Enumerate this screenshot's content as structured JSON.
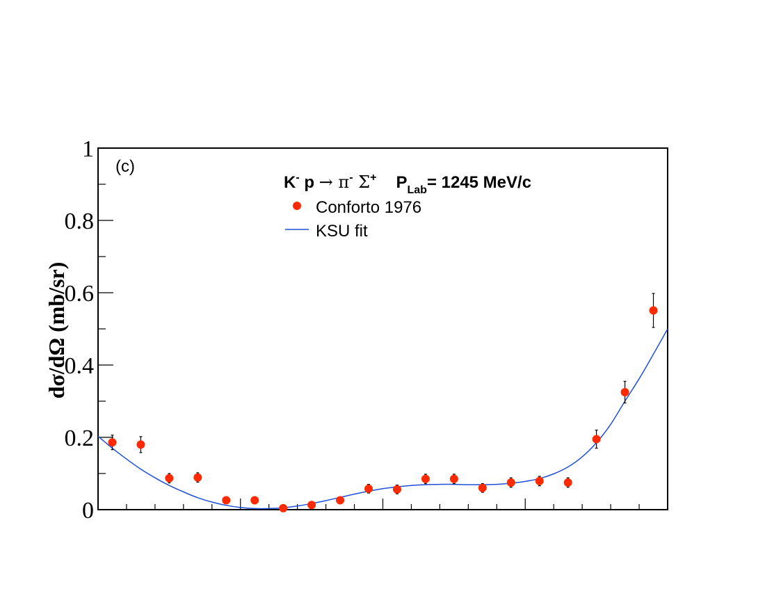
{
  "panel_label": "(c)",
  "colors": {
    "points": "#ff2a00",
    "fit": "#1e4fd8",
    "errorbar": "#000000",
    "axis": "#000000"
  },
  "chart_data": {
    "type": "scatter",
    "title": {
      "k": "K",
      "k_sup": "-",
      "p": " p ",
      "arrow": "→",
      "pi": " π",
      "pi_sup": "-",
      "sigma": " Σ",
      "sigma_sup": "+",
      "plab": "P",
      "plab_sub": "Lab",
      "plab_value": "= 1245 MeV/c"
    },
    "ylabel": "dσ/dΩ (mb/sr)",
    "xlabel": "",
    "xlim": [
      -1,
      1
    ],
    "ylim": [
      0,
      1
    ],
    "y_tick_labels": [
      "0",
      "0.2",
      "0.4",
      "0.6",
      "0.8",
      "1"
    ],
    "y_major_ticks": [
      0,
      0.2,
      0.4,
      0.6,
      0.8,
      1.0
    ],
    "y_minor_ticks": [
      0.1,
      0.3,
      0.5,
      0.7,
      0.9
    ],
    "x_major_ticks": [
      -1,
      -0.5,
      0,
      0.5,
      1
    ],
    "x_minor_ticks": [
      -0.9,
      -0.8,
      -0.7,
      -0.6,
      -0.4,
      -0.3,
      -0.2,
      -0.1,
      0.1,
      0.2,
      0.3,
      0.4,
      0.6,
      0.7,
      0.8,
      0.9
    ],
    "grid": false,
    "legend_position": "top-center",
    "series": [
      {
        "name": "Conforto 1976",
        "kind": "points",
        "x": [
          -0.95,
          -0.85,
          -0.75,
          -0.65,
          -0.55,
          -0.45,
          -0.35,
          -0.25,
          -0.15,
          -0.05,
          0.05,
          0.15,
          0.25,
          0.35,
          0.45,
          0.55,
          0.65,
          0.75,
          0.85,
          0.95
        ],
        "y": [
          0.186,
          0.18,
          0.087,
          0.089,
          0.026,
          0.026,
          0.004,
          0.013,
          0.026,
          0.058,
          0.056,
          0.085,
          0.085,
          0.06,
          0.075,
          0.079,
          0.075,
          0.195,
          0.325,
          0.551
        ],
        "err": [
          0.02,
          0.022,
          0.013,
          0.013,
          0.005,
          0.005,
          0.003,
          0.004,
          0.005,
          0.012,
          0.012,
          0.013,
          0.013,
          0.012,
          0.013,
          0.013,
          0.013,
          0.025,
          0.03,
          0.047
        ]
      },
      {
        "name": "KSU fit",
        "kind": "line",
        "x": [
          -1.0,
          -0.95,
          -0.9,
          -0.85,
          -0.8,
          -0.75,
          -0.7,
          -0.65,
          -0.6,
          -0.55,
          -0.5,
          -0.45,
          -0.4,
          -0.35,
          -0.3,
          -0.25,
          -0.2,
          -0.15,
          -0.1,
          -0.05,
          0.0,
          0.05,
          0.1,
          0.15,
          0.2,
          0.25,
          0.3,
          0.35,
          0.4,
          0.45,
          0.5,
          0.55,
          0.6,
          0.65,
          0.7,
          0.75,
          0.8,
          0.85,
          0.9,
          0.95,
          1.0
        ],
        "y": [
          0.203,
          0.17,
          0.14,
          0.112,
          0.088,
          0.067,
          0.049,
          0.033,
          0.021,
          0.012,
          0.006,
          0.003,
          0.003,
          0.005,
          0.01,
          0.017,
          0.025,
          0.034,
          0.043,
          0.051,
          0.058,
          0.063,
          0.067,
          0.069,
          0.07,
          0.07,
          0.069,
          0.069,
          0.07,
          0.073,
          0.078,
          0.086,
          0.099,
          0.118,
          0.146,
          0.185,
          0.236,
          0.3,
          0.362,
          0.43,
          0.5
        ]
      }
    ]
  }
}
